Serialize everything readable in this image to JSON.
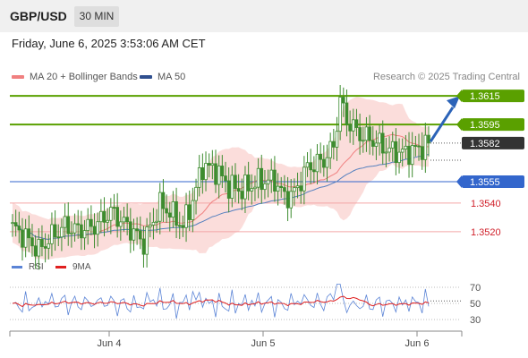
{
  "header": {
    "symbol": "GBP/USD",
    "timeframe": "30 MIN"
  },
  "datetime": "Friday, June 6, 2025 3:53:06 AM CET",
  "legend": {
    "ma20_label": "MA 20 + Bollinger Bands",
    "ma50_label": "MA 50",
    "copyright": "Research © 2025 Trading Central"
  },
  "rsi_legend": {
    "rsi_label": "RSI",
    "ma_label": "9MA"
  },
  "colors": {
    "resistance": "#5aa000",
    "support_line": "#f4a6a6",
    "support_label": "#d0202a",
    "pivot": "#3366cc",
    "current": "#333333",
    "candle": "#3d8c2f",
    "bollinger": "#fad4d2",
    "ma20": "#f08080",
    "ma50": "#5580bf",
    "rsi": "#5b84d6",
    "rsi_ma": "#e02020",
    "arrow": "#2b63b8"
  },
  "chart_data": {
    "type": "candlestick",
    "symbol": "GBP/USD",
    "timeframe": "30 MIN",
    "price_range": [
      1.3508,
      1.3622
    ],
    "x_ticks": [
      "Jun 4",
      "Jun 5",
      "Jun 6"
    ],
    "current_price": "1.3582",
    "levels": [
      {
        "label": "1.3615",
        "value": 1.3615,
        "type": "resistance"
      },
      {
        "label": "1.3595",
        "value": 1.3595,
        "type": "resistance"
      },
      {
        "label": "1.3555",
        "value": 1.3555,
        "type": "pivot"
      },
      {
        "label": "1.3540",
        "value": 1.354,
        "type": "support"
      },
      {
        "label": "1.3520",
        "value": 1.352,
        "type": "support"
      }
    ],
    "anchors": [
      [
        0,
        1.3523
      ],
      [
        4,
        1.3516
      ],
      [
        8,
        1.3507
      ],
      [
        12,
        1.3517
      ],
      [
        16,
        1.3524
      ],
      [
        20,
        1.3521
      ],
      [
        25,
        1.3524
      ],
      [
        30,
        1.3534
      ],
      [
        36,
        1.3522
      ],
      [
        40,
        1.3512
      ],
      [
        45,
        1.3539
      ],
      [
        48,
        1.3534
      ],
      [
        52,
        1.3524
      ],
      [
        55,
        1.3542
      ],
      [
        58,
        1.3566
      ],
      [
        62,
        1.3563
      ],
      [
        66,
        1.3552
      ],
      [
        70,
        1.3549
      ],
      [
        75,
        1.3555
      ],
      [
        80,
        1.3556
      ],
      [
        83,
        1.3544
      ],
      [
        86,
        1.3547
      ],
      [
        90,
        1.3565
      ],
      [
        95,
        1.357
      ],
      [
        98,
        1.358
      ],
      [
        100,
        1.3612
      ],
      [
        102,
        1.3598
      ],
      [
        106,
        1.3588
      ],
      [
        110,
        1.3584
      ],
      [
        115,
        1.3577
      ],
      [
        119,
        1.3575
      ],
      [
        124,
        1.3578
      ],
      [
        127,
        1.3582
      ]
    ],
    "rsi_axis": [
      30,
      50,
      70
    ],
    "rsi_range": [
      20,
      80
    ]
  }
}
